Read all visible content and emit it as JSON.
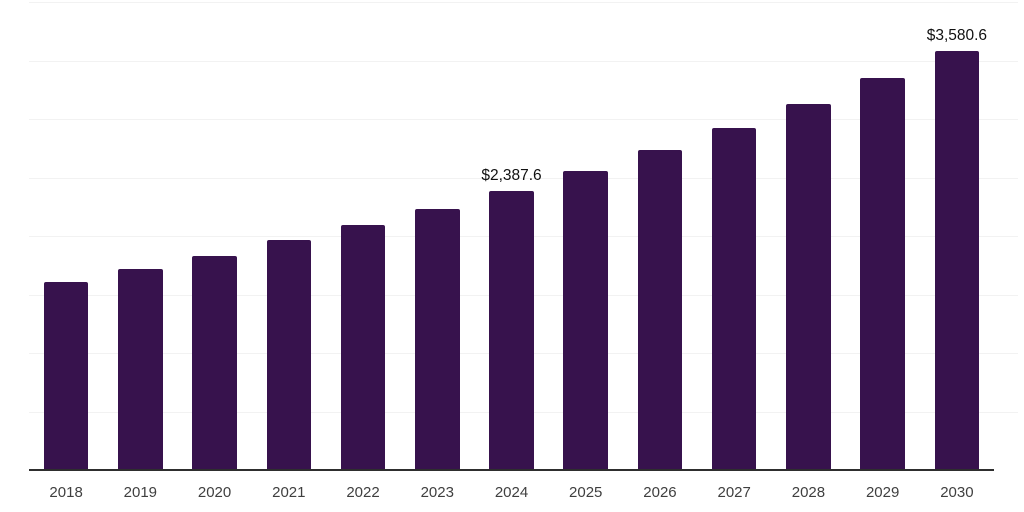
{
  "chart_data": {
    "type": "bar",
    "title": "",
    "xlabel": "",
    "ylabel": "",
    "categories": [
      "2018",
      "2019",
      "2020",
      "2021",
      "2022",
      "2023",
      "2024",
      "2025",
      "2026",
      "2027",
      "2028",
      "2029",
      "2030"
    ],
    "values": [
      1610,
      1720,
      1830,
      1965,
      2090,
      2230,
      2387.6,
      2554.7,
      2733.5,
      2925.0,
      3129.7,
      3348.6,
      3580.6
    ],
    "data_labels": {
      "2024": "$2,387.6",
      "2030": "$3,580.6"
    },
    "ylim": [
      0,
      4000
    ],
    "grid_step": 500,
    "grid": "on",
    "legend": "none",
    "y_tick_labels_visible": false,
    "colors": {
      "bar": "#37124D",
      "grid": "#F2F2F2",
      "axis": "#2E2E2E",
      "tick_label": "#3F3F3F",
      "data_label": "#111111",
      "background": "#FFFFFF"
    }
  }
}
